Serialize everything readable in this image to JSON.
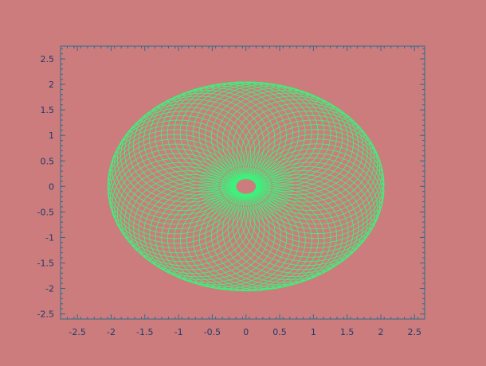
{
  "chart_data": {
    "type": "line",
    "title": "",
    "xlabel": "",
    "ylabel": "",
    "xlim": [
      -2.75,
      2.65
    ],
    "ylim": [
      -2.6,
      2.75
    ],
    "grid": false,
    "x_ticks": [
      -2.5,
      -2,
      -1.5,
      -1,
      -0.5,
      0,
      0.5,
      1,
      1.5,
      2,
      2.5
    ],
    "x_tick_labels": [
      "-2.5",
      "-2",
      "-1.5",
      "-1",
      "-0.5",
      "0",
      "0.5",
      "1",
      "1.5",
      "2",
      "2.5"
    ],
    "y_ticks": [
      2.5,
      2,
      1.5,
      1,
      0.5,
      0,
      -0.5,
      -1,
      -1.5,
      -2,
      -2.5
    ],
    "y_tick_labels": [
      "2.5",
      "2",
      "1.5",
      "1",
      "0.5",
      "0",
      "-0.5",
      "-1",
      "-1.5",
      "-2",
      "-2.5"
    ],
    "minor_ticks_per_major": 5,
    "curve": {
      "kind": "parametric-epicycle",
      "description_formula": "x(t)=R*cos(t)+r*cos(k*t), y(t)=R*sin(t)+r*sin(k*t)",
      "R": 1.1,
      "r": 0.95,
      "k": 24.33,
      "t_range": [
        0,
        18.85
      ],
      "samples": 6000
    },
    "colors": {
      "background": "#cc7c7c",
      "axes_frame": "#2e6b8c",
      "curve": "#3ef07c",
      "tick_label": "#1f3a6b"
    }
  }
}
